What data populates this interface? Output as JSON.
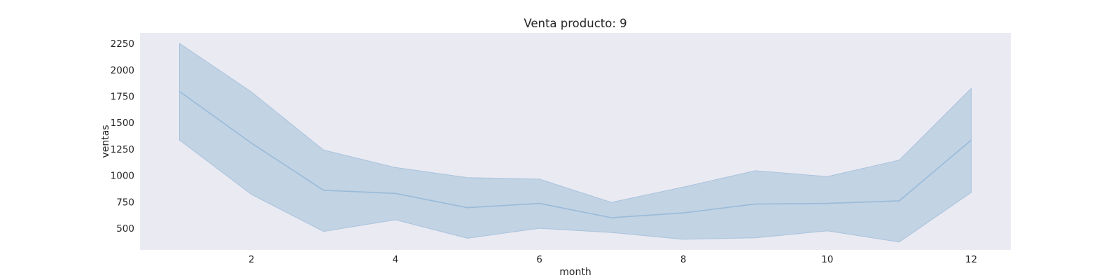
{
  "chart_data": {
    "type": "line",
    "title": "Venta producto: 9",
    "xlabel": "month",
    "ylabel": "ventas",
    "xlim": [
      0.45,
      12.55
    ],
    "ylim": [
      295,
      2350
    ],
    "x_ticks": [
      2,
      4,
      6,
      8,
      10,
      12
    ],
    "y_ticks": [
      500,
      750,
      1000,
      1250,
      1500,
      1750,
      2000,
      2250
    ],
    "grid": false,
    "legend": "none",
    "colors": {
      "plot_background": "#eaeaf2",
      "line": "#99bbd9",
      "band_fill": "#c2d3e4",
      "band_edge": "#a9c3dd",
      "text": "#262626"
    },
    "series": [
      {
        "x": [
          1,
          2,
          3,
          4,
          5,
          6,
          7,
          8,
          9,
          10,
          11,
          12
        ],
        "mean": [
          1795,
          1305,
          860,
          830,
          695,
          735,
          600,
          645,
          730,
          735,
          760,
          1335
        ],
        "ci_upper": [
          2250,
          1790,
          1240,
          1075,
          980,
          965,
          745,
          890,
          1045,
          990,
          1145,
          1825
        ],
        "ci_lower": [
          1335,
          820,
          470,
          580,
          405,
          500,
          460,
          395,
          410,
          475,
          370,
          840
        ]
      }
    ]
  }
}
